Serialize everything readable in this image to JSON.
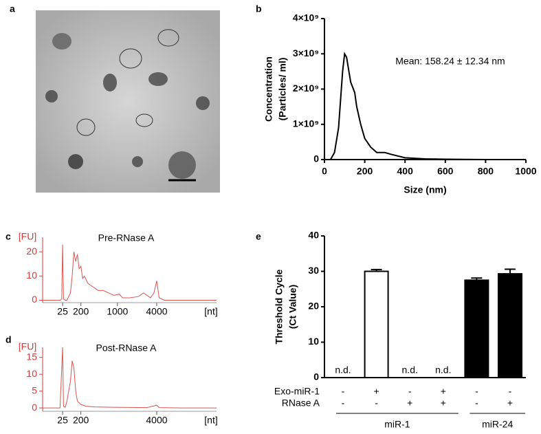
{
  "panel_labels": [
    "a",
    "b",
    "c",
    "d",
    "e"
  ],
  "chart_data": [
    {
      "type": "line",
      "xlabel": "Size (nm)",
      "ylabel": [
        "Concentration",
        "(Particles/ ml)"
      ],
      "annotation": "Mean: 158.24 ± 12.34 nm",
      "color": "#000000",
      "x": [
        30,
        50,
        70,
        90,
        100,
        110,
        130,
        150,
        160,
        180,
        200,
        230,
        260,
        300,
        330,
        400,
        500,
        600,
        800,
        1000
      ],
      "values": [
        0,
        200000000,
        900000000,
        2500000000,
        3000000000,
        2900000000,
        2200000000,
        1900000000,
        1500000000,
        1000000000,
        600000000,
        350000000,
        200000000,
        200000000,
        150000000,
        50000000,
        20000000,
        10000000,
        0,
        0
      ],
      "xlim": [
        0,
        1000
      ],
      "xticks": [
        0,
        200,
        400,
        600,
        800,
        1000
      ],
      "ylim": [
        0,
        4000000000
      ],
      "yticks": [
        0,
        {
          "value": 1000000000,
          "label": "1×10⁹"
        },
        {
          "value": 2000000000,
          "label": "2×10⁹"
        },
        {
          "value": 3000000000,
          "label": "3×10⁹"
        },
        {
          "value": 4000000000,
          "label": "4×10⁹"
        }
      ],
      "axis_color": "#000000"
    },
    {
      "type": "line",
      "title": "Pre-RNase A",
      "ylabel": "[FU]",
      "xlabel": "[nt]",
      "color": "#d9534f",
      "x": [
        0,
        10,
        11,
        11.5,
        12,
        13,
        14,
        16,
        17,
        18,
        19,
        20,
        21,
        22,
        23,
        24,
        26,
        28,
        30,
        32,
        35,
        38,
        41,
        44,
        46,
        50,
        55,
        58,
        60,
        62,
        64,
        65.6,
        67,
        70,
        80,
        100
      ],
      "values": [
        0,
        0,
        0.5,
        23,
        0.5,
        0,
        0,
        3,
        10,
        20,
        16,
        19,
        13,
        14,
        9,
        10,
        7,
        6,
        5,
        4,
        4,
        3,
        2,
        2.5,
        1,
        1,
        1.5,
        3,
        2,
        1,
        3,
        8,
        1,
        0,
        0,
        0
      ],
      "xlim": [
        0,
        100
      ],
      "xticks": [
        {
          "value": 11.5,
          "label": "25"
        },
        {
          "value": 22,
          "label": "200"
        },
        {
          "value": 43,
          "label": "1000"
        },
        {
          "value": 65.6,
          "label": "4000"
        }
      ],
      "ylim": [
        -1,
        26
      ],
      "yticks": [
        0,
        10,
        20
      ],
      "axis_color": "#d33c3c"
    },
    {
      "type": "line",
      "title": "Post-RNase A",
      "ylabel": "[FU]",
      "xlabel": "[nt]",
      "color": "#d9534f",
      "x": [
        0,
        10,
        11.5,
        12,
        13,
        14,
        15,
        16,
        17,
        18,
        19,
        20,
        22,
        25,
        30,
        40,
        60,
        65.6,
        67,
        80,
        100
      ],
      "values": [
        0,
        0,
        18,
        0.5,
        0.2,
        2,
        5,
        8,
        14,
        12,
        5,
        2,
        1,
        0.5,
        0.3,
        0.2,
        0.1,
        0.8,
        0.1,
        0,
        0
      ],
      "xlim": [
        0,
        100
      ],
      "xticks": [
        {
          "value": 11.5,
          "label": "25"
        },
        {
          "value": 22,
          "label": "200"
        },
        {
          "value": 65.6,
          "label": "4000"
        }
      ],
      "ylim": [
        -1,
        18
      ],
      "yticks": [
        0,
        5,
        10,
        15
      ],
      "axis_color": "#d33c3c"
    },
    {
      "type": "bar",
      "ylabel": [
        "Threshold Cycle",
        "(Ct Value)"
      ],
      "categories": [
        null,
        null,
        null,
        null,
        null,
        null
      ],
      "values": [
        null,
        30,
        null,
        null,
        27.5,
        29.3
      ],
      "value_labels": [
        "n.d.",
        null,
        "n.d.",
        "n.d.",
        null,
        null
      ],
      "errors": [
        null,
        0.5,
        null,
        null,
        0.6,
        1.3
      ],
      "colors": [
        "#000000",
        "#ffffff",
        "#000000",
        "#000000",
        "#000000",
        "#000000"
      ],
      "ylim": [
        0,
        40
      ],
      "yticks": [
        0,
        10,
        20,
        30,
        40
      ],
      "axis_color": "#000000",
      "rows": [
        {
          "name": "Exo-miR-1",
          "cells": [
            "-",
            "+",
            "-",
            "+",
            "-",
            "-"
          ]
        },
        {
          "name": "RNase A",
          "cells": [
            "-",
            "-",
            "+",
            "+",
            "-",
            "+"
          ]
        }
      ],
      "groups": [
        {
          "name": "miR-1",
          "span": [
            0,
            3
          ]
        },
        {
          "name": "miR-24",
          "span": [
            4,
            5
          ]
        }
      ]
    }
  ]
}
